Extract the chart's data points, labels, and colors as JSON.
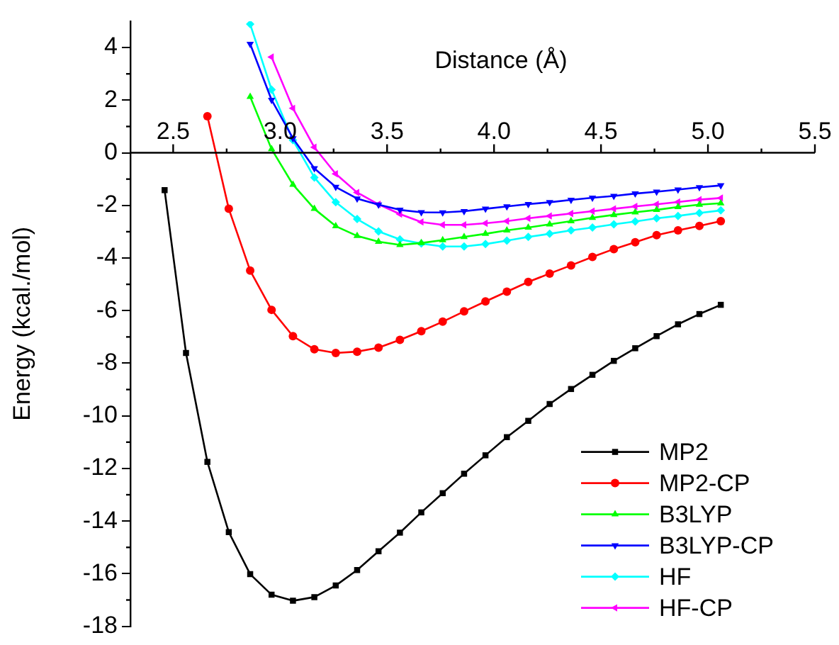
{
  "chart_data": {
    "type": "line",
    "xlabel": "Distance (Å)",
    "ylabel": "Energy (kcal./mol)",
    "xlim": [
      2.3,
      5.5
    ],
    "xticks": [
      2.5,
      {
        "value": 3,
        "label": "3.0"
      },
      3.5,
      {
        "value": 4,
        "label": "4.0"
      },
      4.5,
      {
        "value": 5,
        "label": "5.0"
      },
      5.5
    ],
    "ylim": [
      -18,
      5
    ],
    "yticks": [
      -18,
      -16,
      -14,
      -12,
      -10,
      -8,
      -6,
      -4,
      -2,
      0,
      2,
      4
    ],
    "grid": false,
    "legend": "bottom right",
    "line_style": "solid",
    "series": [
      {
        "name": "MP2",
        "color": "#000000",
        "marker": "square",
        "x": [
          2.46,
          2.56,
          2.66,
          2.76,
          2.86,
          2.96,
          3.06,
          3.16,
          3.26,
          3.36,
          3.46,
          3.56,
          3.66,
          3.76,
          3.86,
          3.96,
          4.06,
          4.16,
          4.26,
          4.36,
          4.46,
          4.56,
          4.66,
          4.76,
          4.86,
          4.96,
          5.06
        ],
        "values": [
          -1.42,
          -7.61,
          -11.75,
          -14.42,
          -16.02,
          -16.8,
          -17.03,
          -16.89,
          -16.45,
          -15.86,
          -15.15,
          -14.44,
          -13.67,
          -12.94,
          -12.2,
          -11.5,
          -10.81,
          -10.19,
          -9.55,
          -8.98,
          -8.44,
          -7.91,
          -7.43,
          -6.97,
          -6.52,
          -6.13,
          -5.78
        ]
      },
      {
        "name": "MP2-CP",
        "color": "#ff0000",
        "marker": "circle",
        "x": [
          2.66,
          2.76,
          2.86,
          2.96,
          3.06,
          3.16,
          3.26,
          3.36,
          3.46,
          3.56,
          3.66,
          3.76,
          3.86,
          3.96,
          4.06,
          4.16,
          4.26,
          4.36,
          4.46,
          4.56,
          4.66,
          4.76,
          4.86,
          4.96,
          5.06
        ],
        "values": [
          1.39,
          -2.13,
          -4.48,
          -5.97,
          -6.97,
          -7.47,
          -7.61,
          -7.56,
          -7.41,
          -7.11,
          -6.78,
          -6.42,
          -6.03,
          -5.65,
          -5.28,
          -4.91,
          -4.59,
          -4.28,
          -3.96,
          -3.66,
          -3.4,
          -3.13,
          -2.95,
          -2.78,
          -2.6
        ]
      },
      {
        "name": "B3LYP",
        "color": "#00ff00",
        "marker": "triangle",
        "x": [
          2.86,
          2.96,
          3.06,
          3.16,
          3.26,
          3.36,
          3.46,
          3.56,
          3.66,
          3.76,
          3.86,
          3.96,
          4.06,
          4.16,
          4.26,
          4.36,
          4.46,
          4.56,
          4.66,
          4.76,
          4.86,
          4.96,
          5.06
        ],
        "values": [
          2.13,
          0.14,
          -1.21,
          -2.13,
          -2.79,
          -3.16,
          -3.38,
          -3.5,
          -3.43,
          -3.32,
          -3.2,
          -3.08,
          -2.95,
          -2.84,
          -2.72,
          -2.6,
          -2.47,
          -2.36,
          -2.26,
          -2.17,
          -2.06,
          -1.97,
          -1.92
        ]
      },
      {
        "name": "B3LYP-CP",
        "color": "#0000ff",
        "marker": "triangle-down",
        "x": [
          2.86,
          2.96,
          3.06,
          3.16,
          3.26,
          3.36,
          3.46,
          3.56,
          3.66,
          3.76,
          3.86,
          3.96,
          4.06,
          4.16,
          4.26,
          4.36,
          4.46,
          4.56,
          4.66,
          4.76,
          4.86,
          4.96,
          5.06
        ],
        "values": [
          4.14,
          2.01,
          0.55,
          -0.59,
          -1.3,
          -1.74,
          -1.97,
          -2.17,
          -2.26,
          -2.27,
          -2.22,
          -2.13,
          -2.04,
          -1.95,
          -1.88,
          -1.79,
          -1.71,
          -1.64,
          -1.55,
          -1.48,
          -1.4,
          -1.31,
          -1.24
        ]
      },
      {
        "name": "HF",
        "color": "#00ffff",
        "marker": "diamond",
        "x": [
          2.86,
          2.96,
          3.06,
          3.16,
          3.26,
          3.36,
          3.46,
          3.56,
          3.66,
          3.76,
          3.86,
          3.96,
          4.06,
          4.16,
          4.26,
          4.36,
          4.46,
          4.56,
          4.66,
          4.76,
          4.86,
          4.96,
          5.06
        ],
        "values": [
          4.89,
          2.4,
          0.48,
          -0.94,
          -1.88,
          -2.52,
          -2.99,
          -3.29,
          -3.45,
          -3.56,
          -3.56,
          -3.47,
          -3.34,
          -3.2,
          -3.08,
          -2.95,
          -2.84,
          -2.72,
          -2.61,
          -2.49,
          -2.4,
          -2.29,
          -2.19
        ]
      },
      {
        "name": "HF-CP",
        "color": "#ff00ff",
        "marker": "triangle-left",
        "x": [
          2.96,
          3.06,
          3.16,
          3.26,
          3.36,
          3.46,
          3.56,
          3.66,
          3.76,
          3.86,
          3.96,
          4.06,
          4.16,
          4.26,
          4.36,
          4.46,
          4.56,
          4.66,
          4.76,
          4.86,
          4.96,
          5.06
        ],
        "values": [
          3.64,
          1.69,
          0.21,
          -0.8,
          -1.51,
          -1.96,
          -2.33,
          -2.63,
          -2.74,
          -2.74,
          -2.68,
          -2.6,
          -2.49,
          -2.4,
          -2.31,
          -2.22,
          -2.13,
          -2.04,
          -1.96,
          -1.87,
          -1.78,
          -1.72
        ]
      }
    ]
  }
}
